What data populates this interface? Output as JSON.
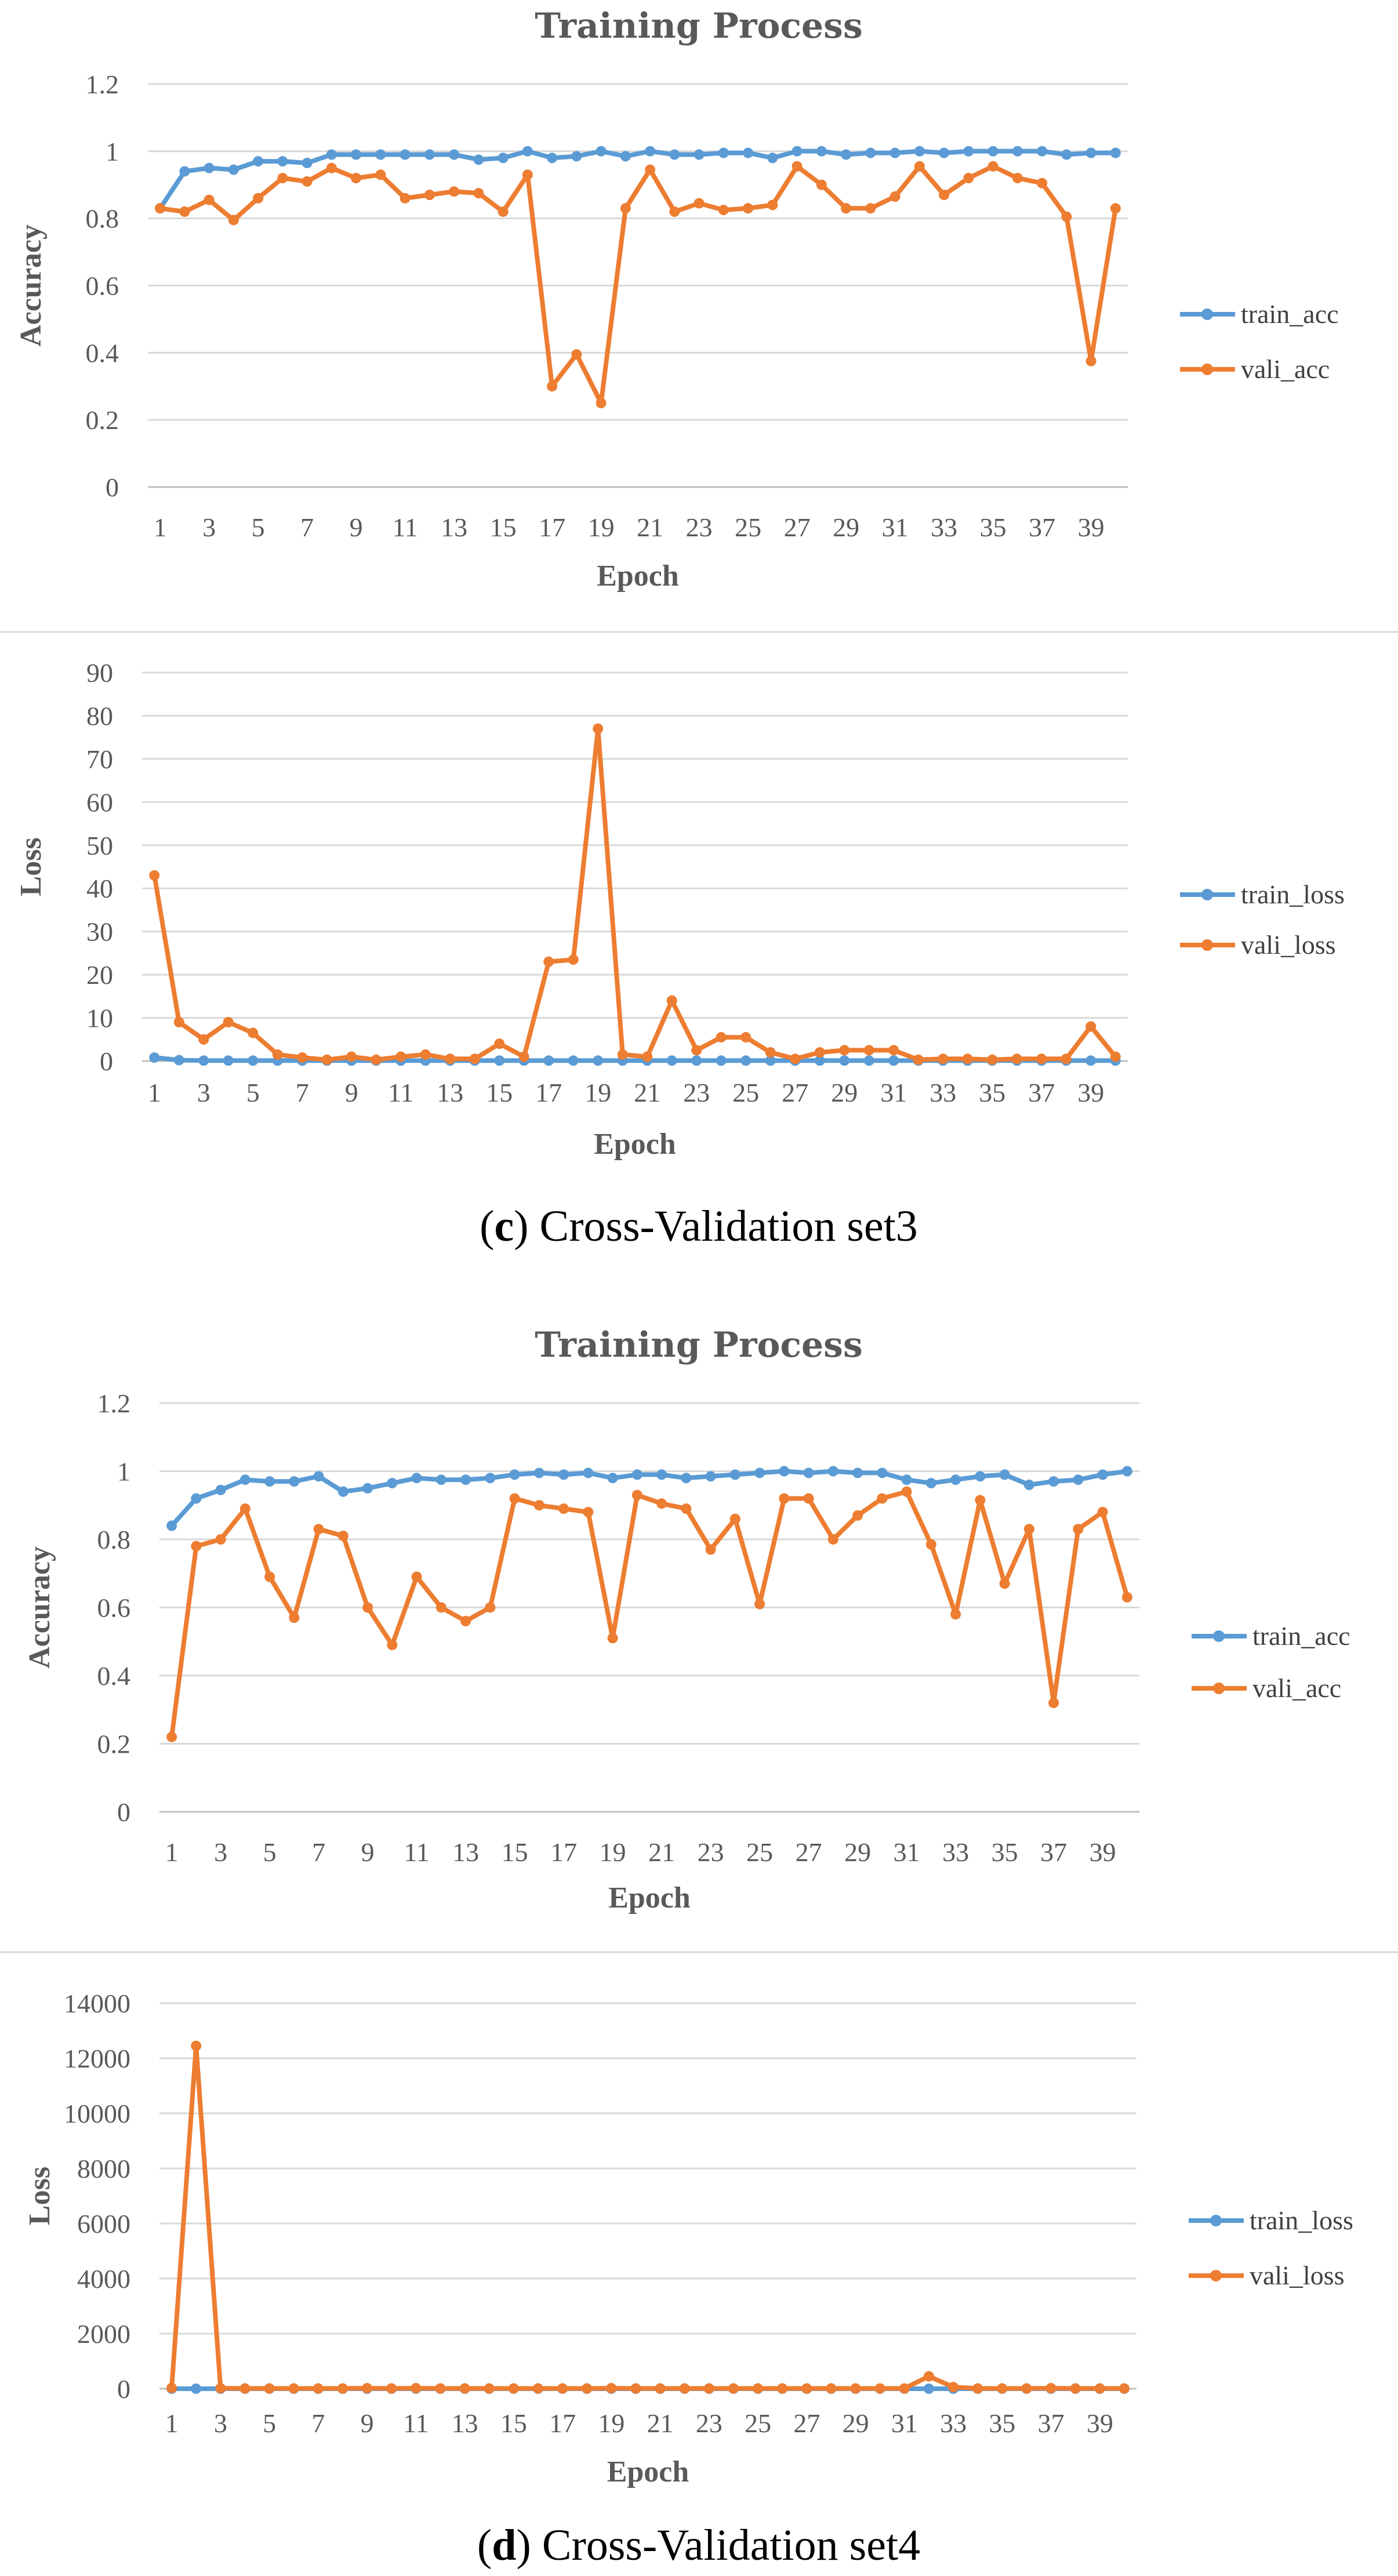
{
  "colors": {
    "train": "#5b9bd5",
    "vali": "#ed7d31",
    "grid": "#d9d9d9",
    "axis": "#bfbfbf",
    "separator": "#d9d9d9"
  },
  "captions": [
    {
      "open": "(",
      "letter": "c",
      "close": ")",
      "rest": " Cross-Validation set3"
    },
    {
      "open": "(",
      "letter": "d",
      "close": ")",
      "rest": " Cross-Validation set4"
    }
  ],
  "chart_data": [
    {
      "type": "line",
      "title": "Training Process",
      "xlabel": "Epoch",
      "ylabel": "Accuracy",
      "ylim": [
        0,
        1.2
      ],
      "yticks": [
        "0",
        "0.2",
        "0.4",
        "0.6",
        "0.8",
        "1",
        "1.2"
      ],
      "ytick_values": [
        0,
        0.2,
        0.4,
        0.6,
        0.8,
        1.0,
        1.2
      ],
      "x": [
        1,
        2,
        3,
        4,
        5,
        6,
        7,
        8,
        9,
        10,
        11,
        12,
        13,
        14,
        15,
        16,
        17,
        18,
        19,
        20,
        21,
        22,
        23,
        24,
        25,
        26,
        27,
        28,
        29,
        30,
        31,
        32,
        33,
        34,
        35,
        36,
        37,
        38,
        39,
        40
      ],
      "xticks": [
        "1",
        "3",
        "5",
        "7",
        "9",
        "11",
        "13",
        "15",
        "17",
        "19",
        "21",
        "23",
        "25",
        "27",
        "29",
        "31",
        "33",
        "35",
        "37",
        "39"
      ],
      "legend": "right",
      "series": [
        {
          "name": "train_acc",
          "color_key": "train",
          "values": [
            0.83,
            0.94,
            0.95,
            0.945,
            0.97,
            0.97,
            0.965,
            0.99,
            0.99,
            0.99,
            0.99,
            0.99,
            0.99,
            0.975,
            0.98,
            1.0,
            0.98,
            0.985,
            1.0,
            0.985,
            1.0,
            0.99,
            0.99,
            0.995,
            0.995,
            0.98,
            1.0,
            1.0,
            0.99,
            0.995,
            0.995,
            1.0,
            0.995,
            1.0,
            1.0,
            1.0,
            1.0,
            0.99,
            0.995,
            0.995
          ]
        },
        {
          "name": "vali_acc",
          "color_key": "vali",
          "values": [
            0.83,
            0.82,
            0.855,
            0.795,
            0.86,
            0.92,
            0.91,
            0.95,
            0.92,
            0.93,
            0.86,
            0.87,
            0.88,
            0.875,
            0.82,
            0.93,
            0.3,
            0.395,
            0.25,
            0.83,
            0.945,
            0.82,
            0.845,
            0.825,
            0.83,
            0.84,
            0.955,
            0.9,
            0.83,
            0.83,
            0.865,
            0.955,
            0.87,
            0.92,
            0.955,
            0.92,
            0.905,
            0.805,
            0.375,
            0.83
          ]
        }
      ]
    },
    {
      "type": "line",
      "title": "",
      "xlabel": "Epoch",
      "ylabel": "Loss",
      "ylim": [
        0,
        90
      ],
      "yticks": [
        "0",
        "10",
        "20",
        "30",
        "40",
        "50",
        "60",
        "70",
        "80",
        "90"
      ],
      "ytick_values": [
        0,
        10,
        20,
        30,
        40,
        50,
        60,
        70,
        80,
        90
      ],
      "x": [
        1,
        2,
        3,
        4,
        5,
        6,
        7,
        8,
        9,
        10,
        11,
        12,
        13,
        14,
        15,
        16,
        17,
        18,
        19,
        20,
        21,
        22,
        23,
        24,
        25,
        26,
        27,
        28,
        29,
        30,
        31,
        32,
        33,
        34,
        35,
        36,
        37,
        38,
        39,
        40
      ],
      "xticks": [
        "1",
        "3",
        "5",
        "7",
        "9",
        "11",
        "13",
        "15",
        "17",
        "19",
        "21",
        "23",
        "25",
        "27",
        "29",
        "31",
        "33",
        "35",
        "37",
        "39"
      ],
      "legend": "right",
      "series": [
        {
          "name": "train_loss",
          "color_key": "train",
          "values": [
            0.8,
            0.2,
            0.1,
            0.1,
            0.1,
            0.1,
            0.1,
            0.1,
            0.1,
            0.1,
            0.1,
            0.1,
            0.1,
            0.1,
            0.1,
            0.1,
            0.1,
            0.1,
            0.1,
            0.1,
            0.1,
            0.1,
            0.1,
            0.1,
            0.1,
            0.1,
            0.1,
            0.1,
            0.1,
            0.1,
            0.1,
            0.1,
            0.1,
            0.1,
            0.1,
            0.1,
            0.1,
            0.1,
            0.1,
            0.1
          ]
        },
        {
          "name": "vali_loss",
          "color_key": "vali",
          "values": [
            43,
            9,
            5,
            9,
            6.5,
            1.5,
            0.8,
            0.3,
            1,
            0.3,
            1,
            1.5,
            0.5,
            0.5,
            4,
            1,
            23,
            23.5,
            77,
            1.5,
            1,
            14,
            2.5,
            5.5,
            5.5,
            2,
            0.5,
            2,
            2.5,
            2.5,
            2.5,
            0.3,
            0.5,
            0.5,
            0.3,
            0.5,
            0.5,
            0.5,
            8,
            1
          ]
        }
      ]
    },
    {
      "type": "line",
      "title": "Training Process",
      "xlabel": "Epoch",
      "ylabel": "Accuracy",
      "ylim": [
        0,
        1.2
      ],
      "yticks": [
        "0",
        "0.2",
        "0.4",
        "0.6",
        "0.8",
        "1",
        "1.2"
      ],
      "ytick_values": [
        0,
        0.2,
        0.4,
        0.6,
        0.8,
        1.0,
        1.2
      ],
      "x": [
        1,
        2,
        3,
        4,
        5,
        6,
        7,
        8,
        9,
        10,
        11,
        12,
        13,
        14,
        15,
        16,
        17,
        18,
        19,
        20,
        21,
        22,
        23,
        24,
        25,
        26,
        27,
        28,
        29,
        30,
        31,
        32,
        33,
        34,
        35,
        36,
        37,
        38,
        39,
        40
      ],
      "xticks": [
        "1",
        "3",
        "5",
        "7",
        "9",
        "11",
        "13",
        "15",
        "17",
        "19",
        "21",
        "23",
        "25",
        "27",
        "29",
        "31",
        "33",
        "35",
        "37",
        "39"
      ],
      "legend": "right",
      "series": [
        {
          "name": "train_acc",
          "color_key": "train",
          "values": [
            0.84,
            0.92,
            0.945,
            0.975,
            0.97,
            0.97,
            0.985,
            0.94,
            0.95,
            0.965,
            0.98,
            0.975,
            0.975,
            0.98,
            0.99,
            0.995,
            0.99,
            0.995,
            0.98,
            0.99,
            0.99,
            0.98,
            0.985,
            0.99,
            0.995,
            1.0,
            0.995,
            1.0,
            0.995,
            0.995,
            0.975,
            0.965,
            0.975,
            0.985,
            0.99,
            0.96,
            0.97,
            0.975,
            0.99,
            1.0
          ]
        },
        {
          "name": "vali_acc",
          "color_key": "vali",
          "values": [
            0.22,
            0.78,
            0.8,
            0.89,
            0.69,
            0.57,
            0.83,
            0.81,
            0.6,
            0.49,
            0.69,
            0.6,
            0.56,
            0.6,
            0.92,
            0.9,
            0.89,
            0.88,
            0.51,
            0.93,
            0.905,
            0.89,
            0.77,
            0.86,
            0.61,
            0.92,
            0.92,
            0.8,
            0.87,
            0.92,
            0.94,
            0.785,
            0.58,
            0.915,
            0.67,
            0.83,
            0.32,
            0.83,
            0.88,
            0.63
          ]
        }
      ]
    },
    {
      "type": "line",
      "title": "",
      "xlabel": "Epoch",
      "ylabel": "Loss",
      "ylim": [
        0,
        14000
      ],
      "yticks": [
        "0",
        "2000",
        "4000",
        "6000",
        "8000",
        "10000",
        "12000",
        "14000"
      ],
      "ytick_values": [
        0,
        2000,
        4000,
        6000,
        8000,
        10000,
        12000,
        14000
      ],
      "x": [
        1,
        2,
        3,
        4,
        5,
        6,
        7,
        8,
        9,
        10,
        11,
        12,
        13,
        14,
        15,
        16,
        17,
        18,
        19,
        20,
        21,
        22,
        23,
        24,
        25,
        26,
        27,
        28,
        29,
        30,
        31,
        32,
        33,
        34,
        35,
        36,
        37,
        38,
        39,
        40
      ],
      "xticks": [
        "1",
        "3",
        "5",
        "7",
        "9",
        "11",
        "13",
        "15",
        "17",
        "19",
        "21",
        "23",
        "25",
        "27",
        "29",
        "31",
        "33",
        "35",
        "37",
        "39"
      ],
      "legend": "right",
      "series": [
        {
          "name": "train_loss",
          "color_key": "train",
          "values": [
            1,
            0.5,
            0.3,
            0.2,
            0.2,
            0.2,
            0.2,
            0.2,
            0.2,
            0.2,
            0.2,
            0.2,
            0.2,
            0.2,
            0.2,
            0.2,
            0.2,
            0.2,
            0.2,
            0.2,
            0.2,
            0.2,
            0.2,
            0.2,
            0.2,
            0.2,
            0.2,
            0.2,
            0.2,
            0.2,
            0.2,
            0.2,
            0.2,
            0.2,
            0.2,
            0.2,
            0.2,
            0.2,
            0.2,
            0.2
          ]
        },
        {
          "name": "vali_loss",
          "color_key": "vali",
          "values": [
            30,
            12450,
            20,
            10,
            10,
            10,
            10,
            10,
            20,
            10,
            20,
            10,
            10,
            10,
            10,
            10,
            10,
            10,
            20,
            10,
            10,
            10,
            10,
            10,
            10,
            10,
            10,
            10,
            10,
            10,
            10,
            450,
            60,
            10,
            10,
            10,
            20,
            10,
            10,
            10
          ]
        }
      ]
    }
  ]
}
